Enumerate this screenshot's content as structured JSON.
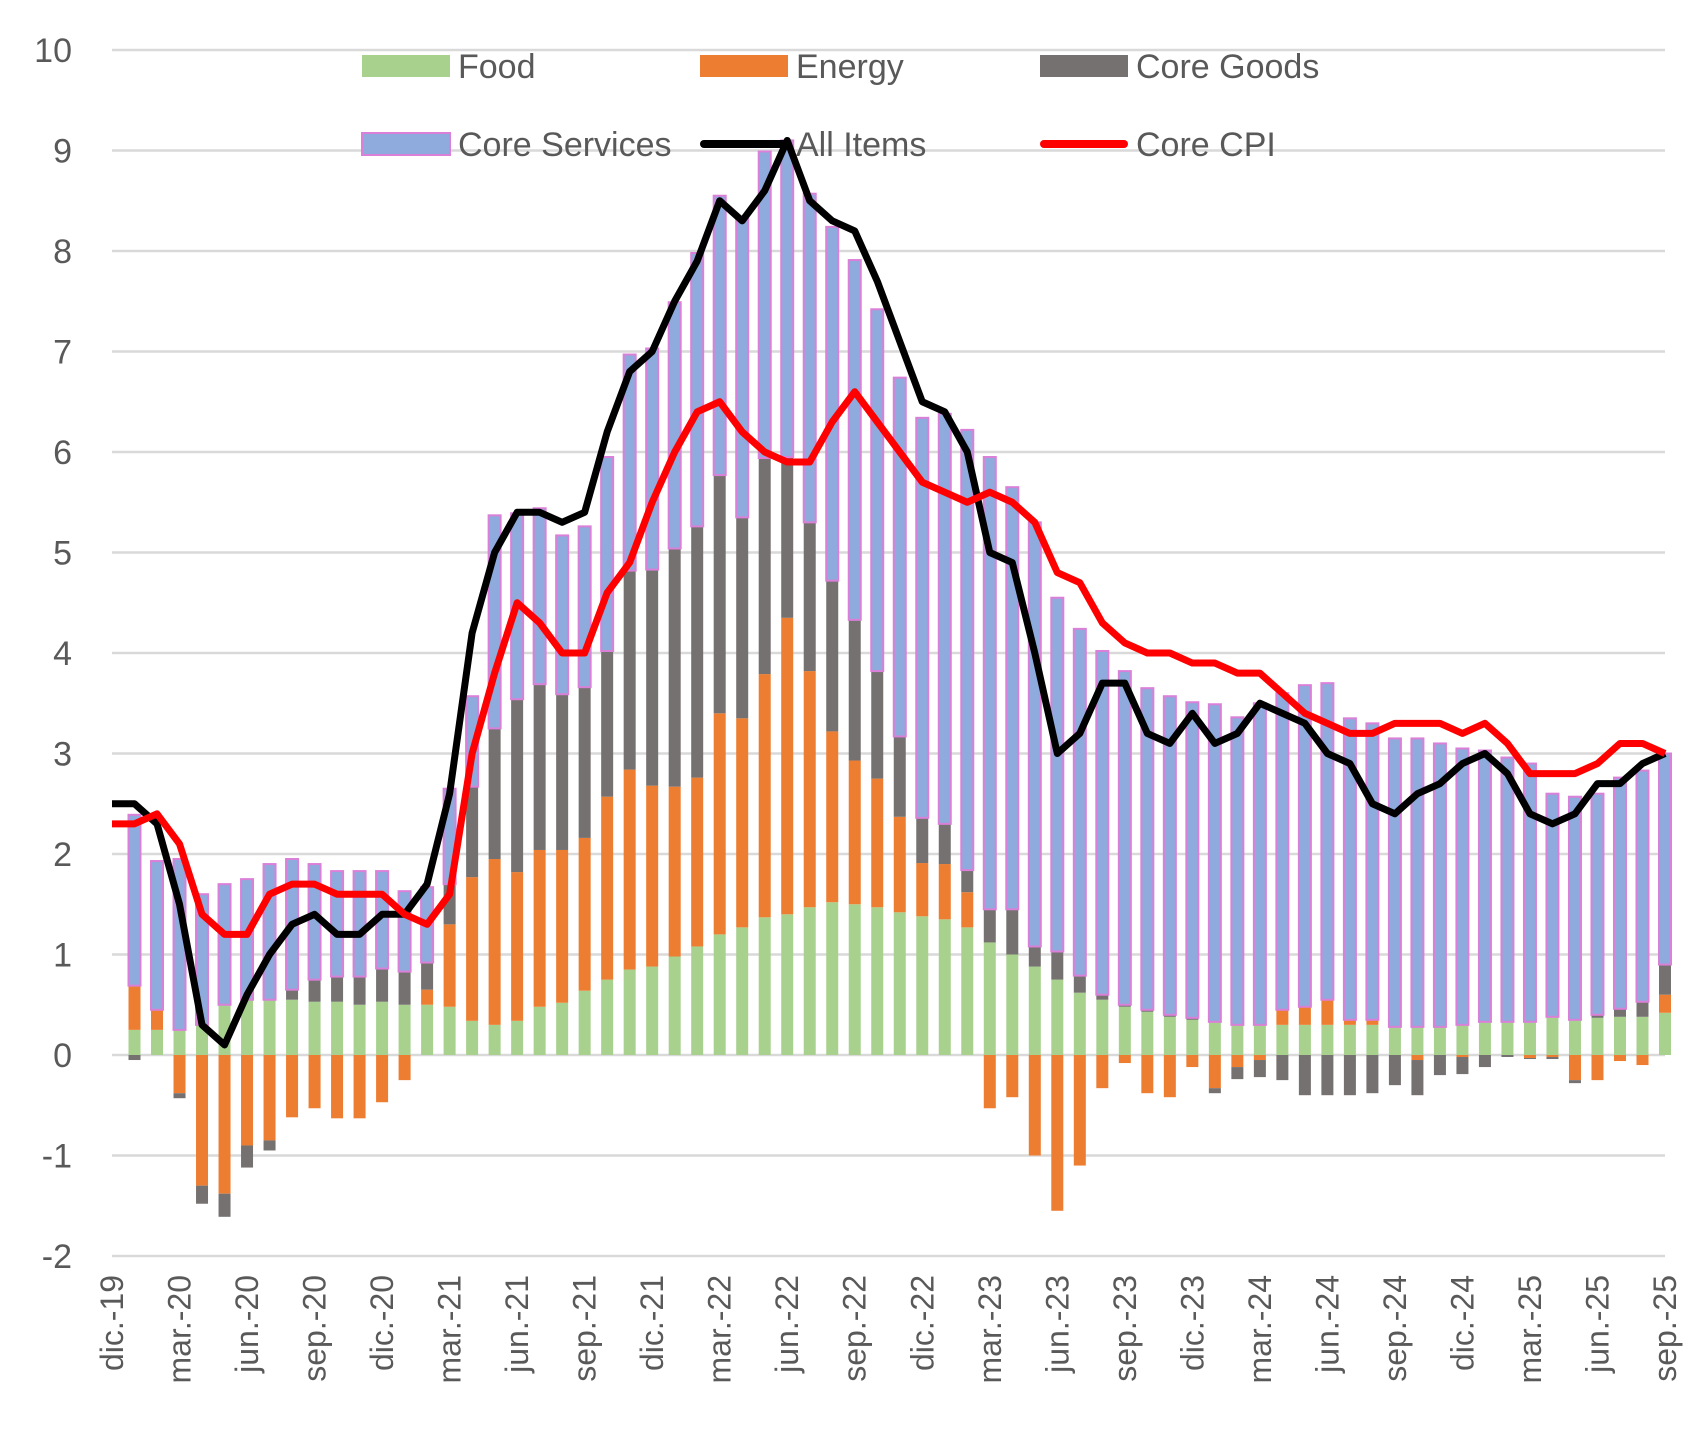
{
  "chart_data": {
    "type": "bar",
    "stacked": true,
    "title": "",
    "xlabel": "",
    "ylabel": "",
    "ylim": [
      -2,
      10
    ],
    "yticks": [
      -2,
      -1,
      0,
      1,
      2,
      3,
      4,
      5,
      6,
      7,
      8,
      9,
      10
    ],
    "grid": true,
    "legend_position": "top-center",
    "categories": [
      "dic.-19",
      "ene.-20",
      "feb.-20",
      "mar.-20",
      "abr.-20",
      "may.-20",
      "jun.-20",
      "jul.-20",
      "ago.-20",
      "sep.-20",
      "oct.-20",
      "nov.-20",
      "dic.-20",
      "ene.-21",
      "feb.-21",
      "mar.-21",
      "abr.-21",
      "may.-21",
      "jun.-21",
      "jul.-21",
      "ago.-21",
      "sep.-21",
      "oct.-21",
      "nov.-21",
      "dic.-21",
      "ene.-22",
      "feb.-22",
      "mar.-22",
      "abr.-22",
      "may.-22",
      "jun.-22",
      "jul.-22",
      "ago.-22",
      "sep.-22",
      "oct.-22",
      "nov.-22",
      "dic.-22",
      "ene.-23",
      "feb.-23",
      "mar.-23",
      "abr.-23",
      "may.-23",
      "jun.-23",
      "jul.-23",
      "ago.-23",
      "sep.-23",
      "oct.-23",
      "nov.-23",
      "dic.-23",
      "ene.-24",
      "feb.-24",
      "mar.-24",
      "abr.-24",
      "may.-24",
      "jun.-24",
      "jul.-24",
      "ago.-24",
      "sep.-24",
      "oct.-24",
      "nov.-24",
      "dic.-24",
      "ene.-25",
      "feb.-25",
      "mar.-25",
      "abr.-25",
      "may.-25",
      "jun.-25",
      "jul.-25",
      "ago.-25",
      "sep.-25"
    ],
    "xtick_labels": [
      "dic.-19",
      "mar.-20",
      "jun.-20",
      "sep.-20",
      "dic.-20",
      "mar.-21",
      "jun.-21",
      "sep.-21",
      "dic.-21",
      "mar.-22",
      "jun.-22",
      "sep.-22",
      "dic.-22",
      "mar.-23",
      "jun.-23",
      "sep.-23",
      "dic.-23",
      "mar.-24",
      "jun.-24",
      "sep.-24",
      "dic.-24",
      "mar.-25",
      "jun.-25",
      "sep.-25"
    ],
    "xtick_every": 3,
    "series": [
      {
        "name": "Food",
        "kind": "bar",
        "color": "#A9D18E",
        "values": [
          null,
          0.25,
          0.25,
          0.25,
          0.3,
          0.5,
          0.55,
          0.55,
          0.55,
          0.53,
          0.53,
          0.5,
          0.53,
          0.5,
          0.5,
          0.48,
          0.34,
          0.3,
          0.34,
          0.48,
          0.52,
          0.64,
          0.75,
          0.85,
          0.88,
          0.98,
          1.08,
          1.2,
          1.27,
          1.37,
          1.4,
          1.47,
          1.52,
          1.5,
          1.47,
          1.42,
          1.38,
          1.35,
          1.27,
          1.12,
          1.0,
          0.88,
          0.75,
          0.62,
          0.55,
          0.48,
          0.43,
          0.38,
          0.35,
          0.33,
          0.3,
          0.3,
          0.3,
          0.3,
          0.3,
          0.3,
          0.3,
          0.28,
          0.28,
          0.28,
          0.3,
          0.33,
          0.33,
          0.33,
          0.38,
          0.35,
          0.37,
          0.38,
          0.38,
          0.42
        ]
      },
      {
        "name": "Energy",
        "kind": "bar",
        "color": "#ED7D31",
        "values": [
          null,
          0.44,
          0.2,
          -0.38,
          -1.3,
          -1.38,
          -0.9,
          -0.85,
          -0.62,
          -0.53,
          -0.63,
          -0.63,
          -0.47,
          -0.25,
          0.15,
          0.82,
          1.43,
          1.65,
          1.48,
          1.56,
          1.52,
          1.52,
          1.82,
          1.99,
          1.8,
          1.69,
          1.68,
          2.2,
          2.08,
          2.42,
          2.95,
          2.35,
          1.7,
          1.43,
          1.28,
          0.95,
          0.53,
          0.55,
          0.35,
          -0.53,
          -0.42,
          -1.0,
          -1.55,
          -1.1,
          -0.33,
          -0.08,
          -0.38,
          -0.42,
          -0.12,
          -0.33,
          -0.12,
          -0.05,
          0.15,
          0.18,
          0.25,
          0.05,
          0.05,
          0.0,
          -0.05,
          0.0,
          -0.02,
          0.0,
          0.0,
          -0.03,
          -0.02,
          -0.25,
          -0.25,
          -0.06,
          -0.1,
          0.18
        ]
      },
      {
        "name": "Core Goods",
        "kind": "bar",
        "color": "#767171",
        "values": [
          null,
          -0.05,
          0.0,
          -0.05,
          -0.18,
          -0.23,
          -0.22,
          -0.1,
          0.1,
          0.22,
          0.25,
          0.28,
          0.33,
          0.33,
          0.27,
          0.4,
          0.9,
          1.3,
          1.72,
          1.65,
          1.55,
          1.5,
          1.45,
          1.98,
          2.15,
          2.37,
          2.5,
          2.37,
          2.0,
          2.15,
          1.6,
          1.48,
          1.5,
          1.4,
          1.07,
          0.8,
          0.45,
          0.4,
          0.22,
          0.33,
          0.45,
          0.2,
          0.28,
          0.17,
          0.05,
          0.02,
          0.02,
          0.02,
          0.02,
          -0.05,
          -0.12,
          -0.17,
          -0.25,
          -0.4,
          -0.4,
          -0.4,
          -0.38,
          -0.3,
          -0.35,
          -0.2,
          -0.17,
          -0.12,
          -0.02,
          -0.01,
          -0.02,
          -0.03,
          0.03,
          0.08,
          0.15,
          0.3
        ]
      },
      {
        "name": "Core Services",
        "kind": "bar",
        "color": "#8FAADC",
        "edgecolor": "#DA80D8",
        "values": [
          null,
          1.7,
          1.48,
          1.7,
          1.3,
          1.2,
          1.2,
          1.35,
          1.3,
          1.15,
          1.05,
          1.05,
          0.97,
          0.8,
          0.75,
          0.95,
          0.9,
          2.12,
          1.85,
          1.75,
          1.58,
          1.6,
          1.93,
          2.15,
          2.2,
          2.45,
          2.72,
          2.78,
          2.97,
          3.05,
          3.15,
          3.27,
          3.52,
          3.58,
          3.6,
          3.57,
          3.98,
          4.08,
          4.38,
          4.5,
          4.2,
          4.22,
          3.52,
          3.45,
          3.42,
          3.32,
          3.2,
          3.17,
          3.14,
          3.16,
          3.06,
          3.2,
          3.15,
          3.2,
          3.15,
          3.0,
          2.95,
          2.87,
          2.87,
          2.82,
          2.75,
          2.7,
          2.63,
          2.57,
          2.22,
          2.22,
          2.2,
          2.3,
          2.3,
          2.1
        ]
      },
      {
        "name": "All Items",
        "kind": "line",
        "color": "#000000",
        "values": [
          2.5,
          2.5,
          2.3,
          1.5,
          0.3,
          0.1,
          0.6,
          1.0,
          1.3,
          1.4,
          1.2,
          1.2,
          1.4,
          1.4,
          1.7,
          2.6,
          4.2,
          5.0,
          5.4,
          5.4,
          5.3,
          5.4,
          6.2,
          6.8,
          7.0,
          7.5,
          7.9,
          8.5,
          8.3,
          8.6,
          9.1,
          8.5,
          8.3,
          8.2,
          7.7,
          7.1,
          6.5,
          6.4,
          6.0,
          5.0,
          4.9,
          4.0,
          3.0,
          3.2,
          3.7,
          3.7,
          3.2,
          3.1,
          3.4,
          3.1,
          3.2,
          3.5,
          3.4,
          3.3,
          3.0,
          2.9,
          2.5,
          2.4,
          2.6,
          2.7,
          2.9,
          3.0,
          2.8,
          2.4,
          2.3,
          2.4,
          2.7,
          2.7,
          2.9,
          3.0
        ]
      },
      {
        "name": "Core CPI",
        "kind": "line",
        "color": "#FF0000",
        "values": [
          2.3,
          2.3,
          2.4,
          2.1,
          1.4,
          1.2,
          1.2,
          1.6,
          1.7,
          1.7,
          1.6,
          1.6,
          1.6,
          1.4,
          1.3,
          1.6,
          3.0,
          3.8,
          4.5,
          4.3,
          4.0,
          4.0,
          4.6,
          4.9,
          5.5,
          6.0,
          6.4,
          6.5,
          6.2,
          6.0,
          5.9,
          5.9,
          6.3,
          6.6,
          6.3,
          6.0,
          5.7,
          5.6,
          5.5,
          5.6,
          5.5,
          5.3,
          4.8,
          4.7,
          4.3,
          4.1,
          4.0,
          4.0,
          3.9,
          3.9,
          3.8,
          3.8,
          3.6,
          3.4,
          3.3,
          3.2,
          3.2,
          3.3,
          3.3,
          3.3,
          3.2,
          3.3,
          3.1,
          2.8,
          2.8,
          2.8,
          2.9,
          3.1,
          3.1,
          3.0
        ]
      }
    ]
  }
}
